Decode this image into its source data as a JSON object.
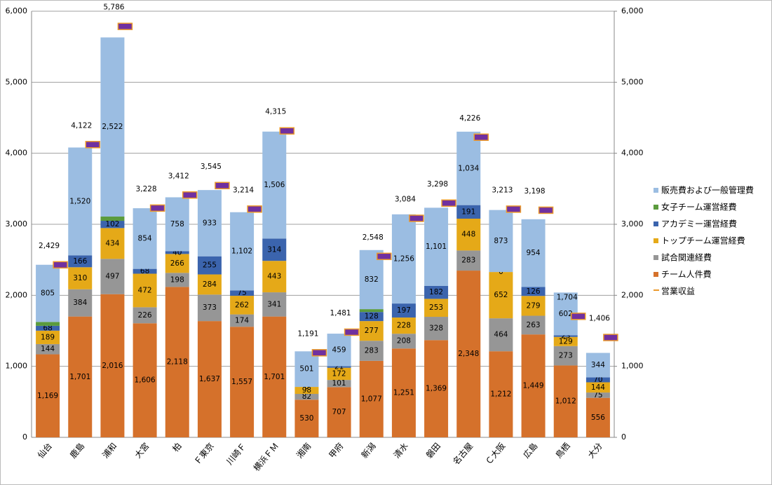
{
  "chart_data": {
    "type": "bar",
    "stacked": true,
    "categories": [
      "仙台",
      "鹿島",
      "浦和",
      "大宮",
      "柏",
      "Ｆ東京",
      "川崎Ｆ",
      "横浜ＦＭ",
      "湘南",
      "甲府",
      "新潟",
      "清水",
      "磐田",
      "名古屋",
      "Ｃ大阪",
      "広島",
      "鳥栖",
      "大分"
    ],
    "ylim": [
      0,
      6000
    ],
    "yticks": [
      0,
      {
        "value": 1000,
        "label": "1,000"
      },
      {
        "value": 2000,
        "label": "2,000"
      },
      {
        "value": 3000,
        "label": "3,000"
      },
      {
        "value": 4000,
        "label": "4,000"
      },
      {
        "value": 5000,
        "label": "5,000"
      },
      {
        "value": 6000,
        "label": "6,000"
      }
    ],
    "y2lim": [
      0,
      6000
    ],
    "y2ticks": [
      0,
      {
        "value": 1000,
        "label": "1,000"
      },
      {
        "value": 2000,
        "label": "2,000"
      },
      {
        "value": 3000,
        "label": "3,000"
      },
      {
        "value": 4000,
        "label": "4,000"
      },
      {
        "value": 5000,
        "label": "5,000"
      },
      {
        "value": 6000,
        "label": "6,000"
      }
    ],
    "grid": true,
    "legend": "right",
    "series": [
      {
        "name": "チーム人件費",
        "color": "#d5712b",
        "values": [
          1169,
          1701,
          2016,
          1606,
          2118,
          1637,
          1557,
          1701,
          530,
          707,
          1077,
          1251,
          1369,
          2348,
          1212,
          1449,
          1012,
          556
        ],
        "value_labels": [
          "1,169",
          "1,701",
          "2,016",
          "1,606",
          "2,118",
          "1,637",
          "1,557",
          "1,701",
          "530",
          "707",
          "1,077",
          "1,251",
          "1,369",
          "2,348",
          "1,212",
          "1,449",
          "1,012",
          "556"
        ]
      },
      {
        "name": "試合関連経費",
        "color": "#969696",
        "values": [
          144,
          384,
          497,
          226,
          198,
          373,
          174,
          341,
          82,
          101,
          283,
          208,
          328,
          283,
          464,
          263,
          273,
          75
        ]
      },
      {
        "name": "トップチーム運営経費",
        "color": "#e5a918",
        "values": [
          189,
          310,
          434,
          472,
          266,
          284,
          262,
          443,
          98,
          172,
          277,
          228,
          253,
          448,
          652,
          279,
          129,
          144
        ]
      },
      {
        "name": "アカデミー運営経費",
        "color": "#3b64ad",
        "values": [
          68,
          166,
          102,
          68,
          40,
          255,
          75,
          314,
          0,
          21,
          128,
          197,
          182,
          191,
          0,
          126,
          23,
          70
        ]
      },
      {
        "name": "女子チーム運営経費",
        "color": "#5b9b3d",
        "labels_shown": false,
        "values": [
          55,
          null,
          60,
          null,
          null,
          null,
          null,
          null,
          null,
          null,
          40,
          null,
          null,
          null,
          null,
          null,
          null,
          null
        ]
      },
      {
        "name": "販売費および一般管理費",
        "color": "#9bbde2",
        "values": [
          805,
          1520,
          2522,
          854,
          758,
          933,
          1102,
          1506,
          501,
          459,
          832,
          1256,
          1101,
          1034,
          873,
          954,
          602,
          344
        ],
        "value_labels": [
          "805",
          "1,520",
          "2,522",
          "854",
          "758",
          "933",
          "1,102",
          "1,506",
          "501",
          "459",
          "832",
          "1,256",
          "1,101",
          "1,034",
          "873",
          "954",
          "602",
          "344"
        ]
      },
      {
        "name": "営業収益",
        "type": "marker",
        "color": "#7030a0",
        "edge_color": "#eb9a2c",
        "values": [
          2429,
          4122,
          5786,
          3228,
          3412,
          3545,
          3214,
          4315,
          1191,
          1481,
          2548,
          3084,
          3298,
          4226,
          3213,
          3198,
          1704,
          1406
        ],
        "value_labels": [
          "2,429",
          "4,122",
          "5,786",
          "3,228",
          "3,412",
          "3,545",
          "3,214",
          "4,315",
          "1,191",
          "1,481",
          "2,548",
          "3,084",
          "3,298",
          "4,226",
          "3,213",
          "3,198",
          "1,704",
          "1,406"
        ]
      }
    ]
  }
}
